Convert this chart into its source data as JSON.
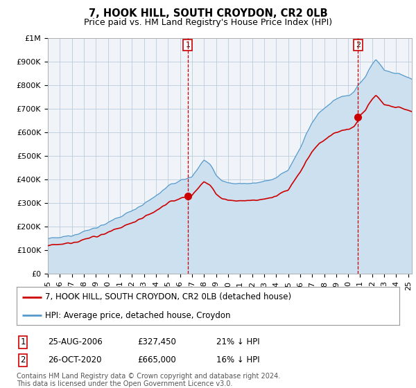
{
  "title": "7, HOOK HILL, SOUTH CROYDON, CR2 0LB",
  "subtitle": "Price paid vs. HM Land Registry's House Price Index (HPI)",
  "ylabel_ticks": [
    "£0",
    "£100K",
    "£200K",
    "£300K",
    "£400K",
    "£500K",
    "£600K",
    "£700K",
    "£800K",
    "£900K",
    "£1M"
  ],
  "ytick_values": [
    0,
    100000,
    200000,
    300000,
    400000,
    500000,
    600000,
    700000,
    800000,
    900000,
    1000000
  ],
  "ylim": [
    0,
    1000000
  ],
  "xlim_start": 1995.0,
  "xlim_end": 2025.3,
  "hpi_color": "#5599cc",
  "hpi_fill_color": "#cce0f0",
  "price_color": "#cc0000",
  "annotation_color": "#cc0000",
  "background_color": "#f0f4f8",
  "grid_color": "#bbccdd",
  "sale1_t": 2006.65,
  "sale1_p": 327450,
  "sale2_t": 2020.82,
  "sale2_p": 665000,
  "legend_label_price": "7, HOOK HILL, SOUTH CROYDON, CR2 0LB (detached house)",
  "legend_label_hpi": "HPI: Average price, detached house, Croydon",
  "table_rows": [
    {
      "num": "1",
      "date": "25-AUG-2006",
      "price": "£327,450",
      "pct": "21% ↓ HPI"
    },
    {
      "num": "2",
      "date": "26-OCT-2020",
      "price": "£665,000",
      "pct": "16% ↓ HPI"
    }
  ],
  "footnote": "Contains HM Land Registry data © Crown copyright and database right 2024.\nThis data is licensed under the Open Government Licence v3.0.",
  "title_fontsize": 10.5,
  "subtitle_fontsize": 9,
  "tick_fontsize": 8,
  "legend_fontsize": 8.5,
  "table_fontsize": 8.5,
  "footnote_fontsize": 7
}
